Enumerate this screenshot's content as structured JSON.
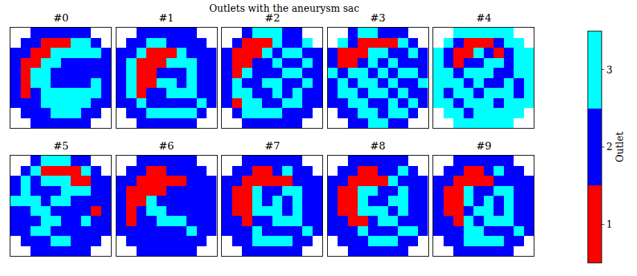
{
  "chart_data": {
    "type": "heatmap",
    "title": "Outlets with the aneurysm sac",
    "tick_labels": false,
    "xlim": [
      -0.5,
      9.5
    ],
    "ylim": [
      9.5,
      -0.5
    ],
    "colorbar": {
      "title": "Outlet",
      "range": [
        0.5,
        3.5
      ],
      "ticks": [
        1,
        2,
        3
      ],
      "colors": [
        "#ff0000",
        "#0000ff",
        "#00ffff"
      ]
    },
    "panels": [
      {
        "title": "#0",
        "cells": [
          [
            null,
            null,
            2,
            2,
            2,
            2,
            2,
            2,
            null,
            null
          ],
          [
            null,
            2,
            2,
            1,
            1,
            1,
            3,
            3,
            2,
            null
          ],
          [
            2,
            2,
            1,
            1,
            3,
            3,
            3,
            3,
            3,
            2
          ],
          [
            2,
            1,
            1,
            3,
            3,
            2,
            2,
            2,
            2,
            2
          ],
          [
            2,
            1,
            3,
            3,
            2,
            2,
            2,
            2,
            2,
            2
          ],
          [
            2,
            1,
            3,
            3,
            2,
            2,
            2,
            2,
            3,
            2
          ],
          [
            2,
            1,
            2,
            3,
            3,
            3,
            3,
            3,
            3,
            2
          ],
          [
            2,
            2,
            2,
            3,
            3,
            3,
            3,
            3,
            2,
            2
          ],
          [
            null,
            2,
            2,
            2,
            3,
            3,
            3,
            2,
            2,
            null
          ],
          [
            null,
            null,
            2,
            2,
            2,
            2,
            2,
            2,
            null,
            null
          ]
        ]
      },
      {
        "title": "#1",
        "cells": [
          [
            null,
            null,
            2,
            2,
            2,
            2,
            2,
            2,
            null,
            null
          ],
          [
            null,
            2,
            2,
            3,
            3,
            2,
            2,
            2,
            2,
            null
          ],
          [
            2,
            2,
            3,
            1,
            1,
            1,
            3,
            2,
            2,
            2
          ],
          [
            2,
            3,
            1,
            1,
            1,
            3,
            3,
            3,
            2,
            2
          ],
          [
            2,
            3,
            1,
            1,
            2,
            2,
            2,
            3,
            2,
            2
          ],
          [
            2,
            3,
            1,
            1,
            3,
            3,
            2,
            3,
            2,
            2
          ],
          [
            2,
            3,
            1,
            2,
            2,
            3,
            3,
            3,
            2,
            2
          ],
          [
            2,
            2,
            3,
            2,
            2,
            2,
            2,
            2,
            3,
            2
          ],
          [
            null,
            2,
            2,
            3,
            3,
            3,
            3,
            3,
            2,
            null
          ],
          [
            null,
            null,
            2,
            2,
            2,
            2,
            2,
            2,
            null,
            null
          ]
        ]
      },
      {
        "title": "#2",
        "cells": [
          [
            null,
            null,
            2,
            3,
            3,
            3,
            2,
            2,
            null,
            null
          ],
          [
            null,
            2,
            1,
            1,
            1,
            3,
            2,
            2,
            3,
            null
          ],
          [
            2,
            1,
            1,
            1,
            3,
            2,
            3,
            3,
            2,
            2
          ],
          [
            2,
            1,
            1,
            2,
            2,
            3,
            2,
            2,
            3,
            2
          ],
          [
            2,
            1,
            3,
            2,
            2,
            2,
            3,
            3,
            2,
            2
          ],
          [
            2,
            3,
            2,
            2,
            3,
            3,
            2,
            2,
            3,
            2
          ],
          [
            2,
            3,
            3,
            2,
            2,
            3,
            2,
            3,
            2,
            2
          ],
          [
            2,
            1,
            3,
            3,
            2,
            2,
            3,
            3,
            2,
            2
          ],
          [
            null,
            2,
            3,
            3,
            3,
            3,
            2,
            2,
            2,
            null
          ],
          [
            null,
            null,
            2,
            2,
            2,
            2,
            2,
            2,
            null,
            null
          ]
        ]
      },
      {
        "title": "#3",
        "cells": [
          [
            null,
            null,
            2,
            3,
            3,
            2,
            2,
            2,
            null,
            null
          ],
          [
            null,
            3,
            2,
            1,
            1,
            1,
            1,
            3,
            2,
            null
          ],
          [
            2,
            1,
            1,
            1,
            3,
            3,
            2,
            2,
            3,
            2
          ],
          [
            2,
            1,
            1,
            2,
            3,
            2,
            3,
            2,
            2,
            2
          ],
          [
            3,
            2,
            3,
            3,
            2,
            3,
            2,
            3,
            3,
            2
          ],
          [
            2,
            3,
            2,
            3,
            3,
            2,
            3,
            2,
            2,
            3
          ],
          [
            2,
            3,
            3,
            2,
            3,
            3,
            2,
            3,
            2,
            2
          ],
          [
            2,
            2,
            3,
            3,
            2,
            2,
            3,
            2,
            3,
            2
          ],
          [
            null,
            2,
            2,
            3,
            3,
            2,
            3,
            3,
            2,
            null
          ],
          [
            null,
            null,
            2,
            2,
            3,
            3,
            2,
            2,
            null,
            null
          ]
        ]
      },
      {
        "title": "#4",
        "cells": [
          [
            null,
            null,
            3,
            3,
            3,
            3,
            3,
            3,
            null,
            null
          ],
          [
            null,
            3,
            2,
            1,
            1,
            1,
            2,
            3,
            3,
            null
          ],
          [
            3,
            2,
            1,
            1,
            3,
            2,
            1,
            2,
            3,
            3
          ],
          [
            3,
            2,
            1,
            2,
            2,
            3,
            3,
            2,
            3,
            3
          ],
          [
            3,
            3,
            2,
            3,
            3,
            3,
            2,
            2,
            3,
            3
          ],
          [
            3,
            3,
            3,
            2,
            3,
            2,
            2,
            3,
            2,
            3
          ],
          [
            3,
            2,
            3,
            3,
            2,
            3,
            3,
            3,
            2,
            3
          ],
          [
            3,
            3,
            2,
            3,
            3,
            3,
            2,
            3,
            3,
            3
          ],
          [
            null,
            3,
            3,
            2,
            3,
            3,
            3,
            3,
            3,
            null
          ],
          [
            null,
            null,
            3,
            3,
            3,
            3,
            3,
            3,
            null,
            null
          ]
        ]
      },
      {
        "title": "#5",
        "cells": [
          [
            null,
            null,
            2,
            3,
            3,
            3,
            2,
            2,
            null,
            null
          ],
          [
            null,
            2,
            3,
            1,
            1,
            1,
            1,
            3,
            2,
            null
          ],
          [
            2,
            3,
            2,
            3,
            3,
            3,
            1,
            1,
            2,
            2
          ],
          [
            2,
            3,
            2,
            2,
            2,
            3,
            3,
            3,
            2,
            2
          ],
          [
            3,
            3,
            3,
            2,
            3,
            3,
            2,
            2,
            2,
            2
          ],
          [
            2,
            2,
            3,
            3,
            2,
            2,
            2,
            2,
            1,
            2
          ],
          [
            2,
            2,
            2,
            3,
            3,
            2,
            2,
            3,
            2,
            2
          ],
          [
            2,
            2,
            3,
            3,
            2,
            2,
            2,
            2,
            2,
            2
          ],
          [
            null,
            2,
            2,
            2,
            3,
            3,
            2,
            2,
            2,
            null
          ],
          [
            null,
            null,
            2,
            2,
            2,
            2,
            2,
            2,
            null,
            null
          ]
        ]
      },
      {
        "title": "#6",
        "cells": [
          [
            null,
            null,
            2,
            2,
            2,
            2,
            2,
            2,
            null,
            null
          ],
          [
            null,
            2,
            2,
            1,
            1,
            2,
            2,
            2,
            2,
            null
          ],
          [
            2,
            2,
            1,
            1,
            1,
            1,
            1,
            2,
            2,
            2
          ],
          [
            2,
            1,
            1,
            1,
            1,
            2,
            2,
            2,
            2,
            2
          ],
          [
            2,
            1,
            1,
            3,
            2,
            2,
            2,
            2,
            2,
            2
          ],
          [
            2,
            1,
            2,
            3,
            3,
            2,
            2,
            2,
            2,
            2
          ],
          [
            2,
            1,
            2,
            2,
            3,
            3,
            3,
            2,
            2,
            2
          ],
          [
            2,
            2,
            2,
            2,
            2,
            2,
            2,
            3,
            2,
            2
          ],
          [
            null,
            2,
            2,
            2,
            2,
            2,
            2,
            2,
            2,
            null
          ],
          [
            null,
            null,
            2,
            2,
            2,
            2,
            2,
            2,
            null,
            null
          ]
        ]
      },
      {
        "title": "#7",
        "cells": [
          [
            null,
            null,
            2,
            2,
            2,
            2,
            2,
            2,
            null,
            null
          ],
          [
            null,
            2,
            2,
            1,
            1,
            2,
            3,
            2,
            2,
            null
          ],
          [
            2,
            2,
            1,
            1,
            1,
            1,
            1,
            2,
            2,
            2
          ],
          [
            2,
            1,
            1,
            3,
            2,
            2,
            3,
            3,
            2,
            2
          ],
          [
            2,
            1,
            1,
            3,
            2,
            3,
            2,
            3,
            2,
            2
          ],
          [
            2,
            1,
            1,
            3,
            3,
            3,
            2,
            3,
            2,
            2
          ],
          [
            2,
            2,
            1,
            2,
            2,
            3,
            3,
            3,
            2,
            2
          ],
          [
            2,
            2,
            2,
            3,
            2,
            2,
            2,
            2,
            3,
            2
          ],
          [
            null,
            2,
            2,
            3,
            3,
            3,
            3,
            2,
            2,
            null
          ],
          [
            null,
            null,
            2,
            2,
            2,
            2,
            2,
            2,
            null,
            null
          ]
        ]
      },
      {
        "title": "#8",
        "cells": [
          [
            null,
            null,
            2,
            2,
            2,
            2,
            2,
            2,
            null,
            null
          ],
          [
            null,
            2,
            2,
            1,
            1,
            2,
            2,
            3,
            2,
            null
          ],
          [
            2,
            2,
            1,
            1,
            1,
            1,
            3,
            2,
            2,
            2
          ],
          [
            2,
            1,
            1,
            3,
            3,
            2,
            2,
            3,
            2,
            2
          ],
          [
            2,
            1,
            1,
            3,
            2,
            2,
            3,
            3,
            2,
            2
          ],
          [
            2,
            1,
            1,
            3,
            3,
            3,
            2,
            3,
            2,
            2
          ],
          [
            2,
            2,
            1,
            1,
            2,
            3,
            3,
            2,
            2,
            2
          ],
          [
            2,
            2,
            2,
            3,
            2,
            2,
            2,
            3,
            3,
            2
          ],
          [
            null,
            2,
            2,
            2,
            3,
            3,
            3,
            2,
            2,
            null
          ],
          [
            null,
            null,
            2,
            2,
            2,
            2,
            2,
            2,
            null,
            null
          ]
        ]
      },
      {
        "title": "#9",
        "cells": [
          [
            null,
            null,
            2,
            2,
            2,
            2,
            2,
            2,
            null,
            null
          ],
          [
            null,
            2,
            2,
            1,
            1,
            2,
            3,
            2,
            2,
            null
          ],
          [
            2,
            2,
            1,
            1,
            1,
            1,
            2,
            2,
            2,
            2
          ],
          [
            2,
            1,
            1,
            3,
            2,
            2,
            3,
            3,
            2,
            2
          ],
          [
            2,
            1,
            1,
            3,
            2,
            3,
            2,
            3,
            2,
            2
          ],
          [
            2,
            1,
            1,
            2,
            3,
            3,
            2,
            3,
            2,
            2
          ],
          [
            2,
            2,
            1,
            3,
            2,
            3,
            3,
            3,
            2,
            2
          ],
          [
            2,
            2,
            2,
            3,
            3,
            2,
            2,
            2,
            3,
            2
          ],
          [
            null,
            2,
            2,
            3,
            3,
            3,
            3,
            2,
            2,
            null
          ],
          [
            null,
            null,
            2,
            2,
            2,
            2,
            2,
            2,
            null,
            null
          ]
        ]
      }
    ]
  }
}
